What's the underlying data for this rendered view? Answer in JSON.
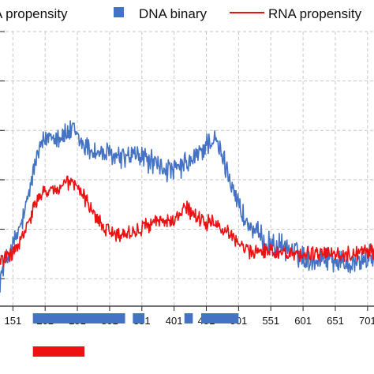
{
  "chart_data": {
    "type": "line",
    "legend": {
      "position": "top",
      "entries": [
        {
          "key": "dna_propensity",
          "label": "A propensity",
          "marker": "line",
          "color": "#4472c4"
        },
        {
          "key": "dna_binary",
          "label": "DNA binary",
          "marker": "square",
          "color": "#4472c4"
        },
        {
          "key": "rna_propensity",
          "label": "RNA propensity",
          "marker": "line",
          "color": "#ee1111"
        }
      ]
    },
    "x_axis": {
      "tick_labels": [
        "151",
        "201",
        "251",
        "301",
        "351",
        "401",
        "451",
        "501",
        "551",
        "601",
        "651",
        "701"
      ],
      "xlim": [
        131,
        711
      ]
    },
    "y_axis": {
      "ylim": [
        0,
        1
      ],
      "gridlines": [
        0.1,
        0.28,
        0.46,
        0.64,
        0.82,
        1.0
      ],
      "grid": true,
      "grid_style": "dashed"
    },
    "series": [
      {
        "key": "dna_propensity",
        "label": "A propensity",
        "color": "#4472c4",
        "keypoints": [
          [
            131,
            0.1
          ],
          [
            140,
            0.16
          ],
          [
            155,
            0.24
          ],
          [
            170,
            0.34
          ],
          [
            180,
            0.46
          ],
          [
            190,
            0.56
          ],
          [
            200,
            0.6
          ],
          [
            210,
            0.63
          ],
          [
            220,
            0.62
          ],
          [
            230,
            0.62
          ],
          [
            245,
            0.64
          ],
          [
            255,
            0.6
          ],
          [
            265,
            0.58
          ],
          [
            280,
            0.56
          ],
          [
            300,
            0.55
          ],
          [
            320,
            0.54
          ],
          [
            340,
            0.55
          ],
          [
            355,
            0.54
          ],
          [
            370,
            0.52
          ],
          [
            385,
            0.5
          ],
          [
            400,
            0.49
          ],
          [
            415,
            0.51
          ],
          [
            430,
            0.53
          ],
          [
            445,
            0.57
          ],
          [
            455,
            0.6
          ],
          [
            465,
            0.6
          ],
          [
            475,
            0.55
          ],
          [
            485,
            0.48
          ],
          [
            495,
            0.42
          ],
          [
            505,
            0.34
          ],
          [
            520,
            0.28
          ],
          [
            540,
            0.24
          ],
          [
            560,
            0.22
          ],
          [
            580,
            0.21
          ],
          [
            600,
            0.18
          ],
          [
            620,
            0.17
          ],
          [
            640,
            0.18
          ],
          [
            660,
            0.16
          ],
          [
            680,
            0.16
          ],
          [
            700,
            0.17
          ],
          [
            711,
            0.18
          ]
        ]
      },
      {
        "key": "rna_propensity",
        "label": "RNA propensity",
        "color": "#ee1111",
        "keypoints": [
          [
            131,
            0.17
          ],
          [
            145,
            0.18
          ],
          [
            160,
            0.22
          ],
          [
            175,
            0.3
          ],
          [
            185,
            0.37
          ],
          [
            195,
            0.4
          ],
          [
            210,
            0.43
          ],
          [
            220,
            0.42
          ],
          [
            235,
            0.45
          ],
          [
            250,
            0.44
          ],
          [
            265,
            0.38
          ],
          [
            280,
            0.32
          ],
          [
            300,
            0.27
          ],
          [
            320,
            0.26
          ],
          [
            340,
            0.27
          ],
          [
            355,
            0.29
          ],
          [
            370,
            0.31
          ],
          [
            385,
            0.31
          ],
          [
            400,
            0.31
          ],
          [
            410,
            0.33
          ],
          [
            420,
            0.36
          ],
          [
            430,
            0.33
          ],
          [
            445,
            0.31
          ],
          [
            460,
            0.3
          ],
          [
            475,
            0.28
          ],
          [
            490,
            0.26
          ],
          [
            505,
            0.22
          ],
          [
            520,
            0.2
          ],
          [
            540,
            0.2
          ],
          [
            560,
            0.2
          ],
          [
            580,
            0.19
          ],
          [
            600,
            0.19
          ],
          [
            620,
            0.19
          ],
          [
            640,
            0.19
          ],
          [
            660,
            0.19
          ],
          [
            680,
            0.19
          ],
          [
            700,
            0.2
          ],
          [
            711,
            0.2
          ]
        ]
      }
    ],
    "binary_tracks": [
      {
        "key": "dna_binary",
        "color": "#4472c4",
        "segments": [
          [
            182,
            325
          ],
          [
            337,
            355
          ],
          [
            417,
            430
          ],
          [
            443,
            501
          ]
        ]
      },
      {
        "key": "rna_binary",
        "color": "#ee1111",
        "segments": [
          [
            182,
            262
          ]
        ]
      }
    ]
  }
}
